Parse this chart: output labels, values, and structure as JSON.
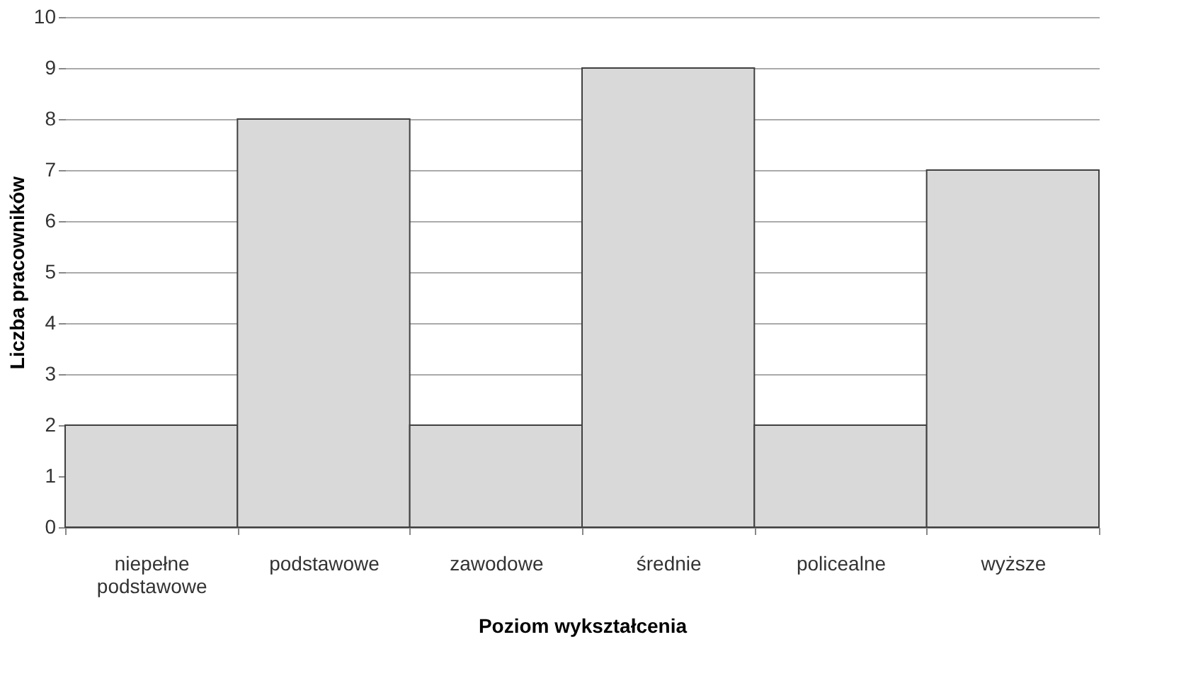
{
  "chart_data": {
    "type": "bar",
    "xlabel": "Poziom wykształcenia",
    "ylabel": "Liczba pracowników",
    "categories": [
      "niepełne podstawowe",
      "podstawowe",
      "zawodowe",
      "średnie",
      "policealne",
      "wyższe"
    ],
    "values": [
      2,
      8,
      2,
      9,
      2,
      7
    ],
    "color": "#d9d9d9",
    "ylim": [
      0,
      10
    ],
    "yticks": [
      0,
      1,
      2,
      3,
      4,
      5,
      6,
      7,
      8,
      9,
      10
    ],
    "grid": "y"
  }
}
